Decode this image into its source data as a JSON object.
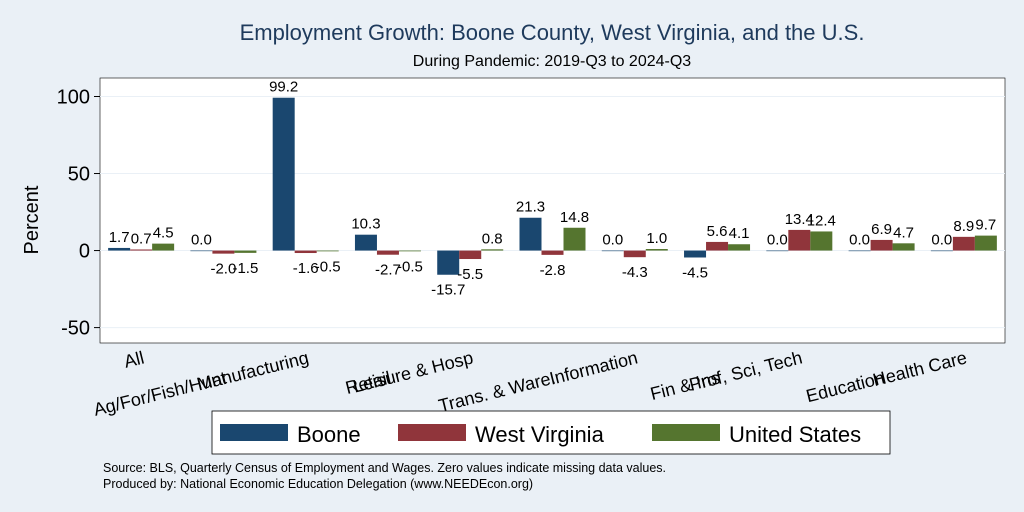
{
  "chart_data": {
    "type": "bar",
    "title": "Employment Growth: Boone County, West Virginia, and the U.S.",
    "subtitle": "During Pandemic: 2019-Q3 to 2024-Q3",
    "ylabel": "Percent",
    "xlabel": "",
    "ylim": [
      -60,
      112
    ],
    "yticks": [
      -50,
      0,
      50,
      100
    ],
    "grid": true,
    "legend_position": "bottom",
    "categories": [
      "All",
      "Ag/For/Fish/Hunt",
      "Manufacturing",
      "Retail",
      "Leisure & Hosp",
      "Trans. & Ware.",
      "Information",
      "Fin & Ins",
      "Prof, Sci, Tech",
      "Education",
      "Health Care"
    ],
    "series": [
      {
        "name": "Boone",
        "color": "#1a476f",
        "values": [
          1.7,
          0.0,
          99.2,
          10.3,
          -15.7,
          21.3,
          0.0,
          -4.5,
          0.0,
          0.0,
          0.0
        ]
      },
      {
        "name": "West Virginia",
        "color": "#90353b",
        "values": [
          0.7,
          -2.0,
          -1.6,
          -2.7,
          -5.5,
          -2.8,
          -4.3,
          5.6,
          13.4,
          6.9,
          8.9
        ]
      },
      {
        "name": "United States",
        "color": "#55752f",
        "values": [
          4.5,
          -1.5,
          -0.5,
          -0.5,
          0.8,
          14.8,
          1.0,
          4.1,
          12.4,
          4.7,
          9.7
        ]
      }
    ],
    "notes": [
      "Source: BLS, Quarterly Census of Employment and Wages. Zero values indicate missing data values.",
      "Produced by: National Economic Education Delegation (www.NEEDEcon.org)"
    ]
  }
}
